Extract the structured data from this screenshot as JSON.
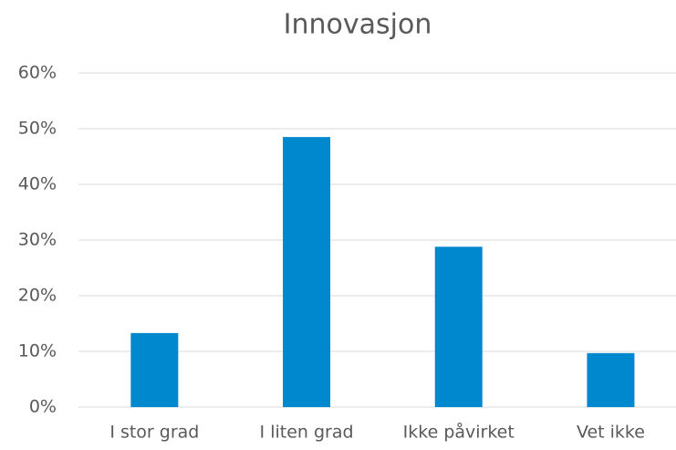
{
  "chart_data": {
    "type": "bar",
    "title": "Innovasjon",
    "categories": [
      "I stor grad",
      "I liten grad",
      "Ikke påvirket",
      "Vet ikke"
    ],
    "values": [
      13.3,
      48.5,
      28.8,
      9.7
    ],
    "color": "#0088cf",
    "ylim": [
      0,
      60
    ],
    "yticks": [
      {
        "value": 0,
        "label": "0%"
      },
      {
        "value": 10,
        "label": "10%"
      },
      {
        "value": 20,
        "label": "20%"
      },
      {
        "value": 30,
        "label": "30%"
      },
      {
        "value": 40,
        "label": "40%"
      },
      {
        "value": 50,
        "label": "50%"
      },
      {
        "value": 60,
        "label": "60%"
      }
    ],
    "grid": true
  }
}
